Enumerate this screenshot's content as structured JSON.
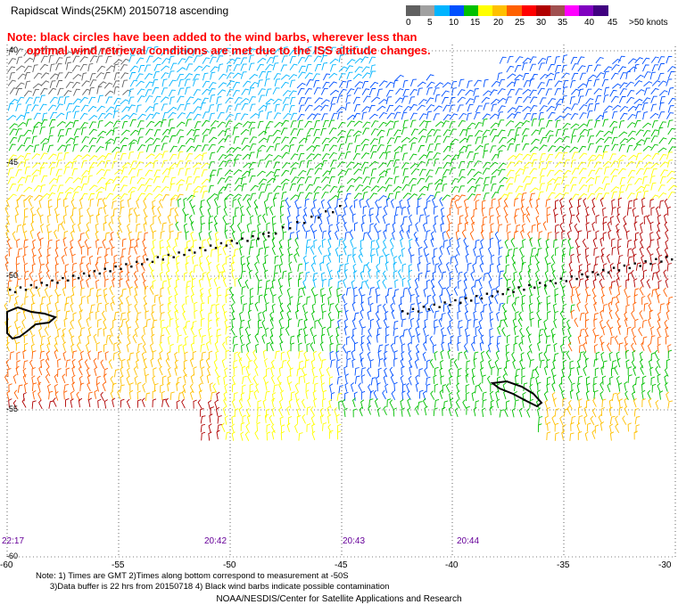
{
  "title": "Rapidscat Winds(25KM) 20150718 ascending",
  "note_line1": "Note: black circles have been added to the wind barbs, wherever less than",
  "note_line2": "      optimal wind retrieval conditions are met due to the ISS altitude changes.",
  "legend": {
    "colors": [
      "#606060",
      "#a0a0a0",
      "#00b4ff",
      "#0050ff",
      "#00c000",
      "#ffff00",
      "#ffc000",
      "#ff6000",
      "#ff0000",
      "#b00000",
      "#a05050",
      "#ff00ff",
      "#8000c0",
      "#400080"
    ],
    "labels": [
      "0",
      "5",
      "10",
      "15",
      "20",
      "25",
      "30",
      "35",
      "40",
      "45",
      ">50 knots"
    ]
  },
  "lat_labels": [
    "-40",
    "-45",
    "-50",
    "-55",
    "-60"
  ],
  "lon_labels": [
    "-60",
    "-55",
    "-50",
    "-45",
    "-40",
    "-35",
    "-30"
  ],
  "time_labels": [
    "22:17",
    "20:42",
    "20:43",
    "20:44"
  ],
  "footnote_line1": "Note: 1) Times are GMT 2)Times along bottom correspond to measurement at -50S",
  "footnote_line2": "      3)Data buffer is 22 hrs from 20150718 4) Black wind barbs indicate possible contamination",
  "credit": "NOAA/NESDIS/Center for Satellite Applications and Research"
}
